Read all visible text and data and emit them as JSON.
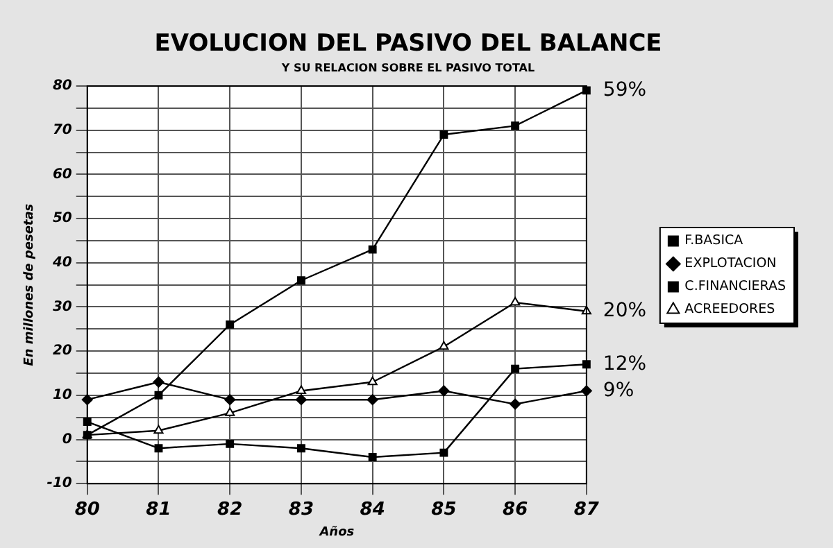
{
  "chart_data": {
    "type": "line",
    "title": "EVOLUCION DEL PASIVO DEL BALANCE",
    "subtitle": "Y SU RELACION SOBRE EL PASIVO TOTAL",
    "xlabel": "Años",
    "ylabel": "En millones de pesetas",
    "categories": [
      "80",
      "81",
      "82",
      "83",
      "84",
      "85",
      "86",
      "87"
    ],
    "series": [
      {
        "name": "F.BASICA",
        "color": "#000000",
        "marker": "square",
        "values": [
          1,
          10,
          26,
          36,
          43,
          69,
          71,
          79
        ]
      },
      {
        "name": "EXPLOTACION",
        "color": "#000000",
        "marker": "diamond",
        "values": [
          9,
          13,
          9,
          9,
          9,
          11,
          8,
          11
        ]
      },
      {
        "name": "C.FINANCIERAS",
        "color": "#000000",
        "marker": "square",
        "values": [
          4,
          -2,
          -1,
          -2,
          -4,
          -3,
          16,
          17
        ]
      },
      {
        "name": "ACREEDORES",
        "color": "#000000",
        "marker": "triangle",
        "values": [
          1,
          2,
          6,
          11,
          13,
          21,
          31,
          29
        ]
      }
    ],
    "ylim": [
      -10,
      80
    ],
    "yticks": [
      -10,
      {
        "value": -5,
        "label": null
      },
      0,
      {
        "value": 5,
        "label": null
      },
      10,
      {
        "value": 15,
        "label": null
      },
      20,
      {
        "value": 25,
        "label": null
      },
      30,
      {
        "value": 35,
        "label": null
      },
      40,
      {
        "value": 45,
        "label": null
      },
      50,
      {
        "value": 55,
        "label": null
      },
      60,
      {
        "value": 65,
        "label": null
      },
      70,
      {
        "value": 75,
        "label": null
      },
      80
    ],
    "annotations": [
      {
        "text": "59%",
        "x": "87",
        "y": 79
      },
      {
        "text": "20%",
        "x": "87",
        "y": 29
      },
      {
        "text": "12%",
        "x": "87",
        "y": 17
      },
      {
        "text": "9%",
        "x": "87",
        "y": 11
      }
    ],
    "grid": true,
    "legend": "right",
    "line_style": "solid"
  }
}
